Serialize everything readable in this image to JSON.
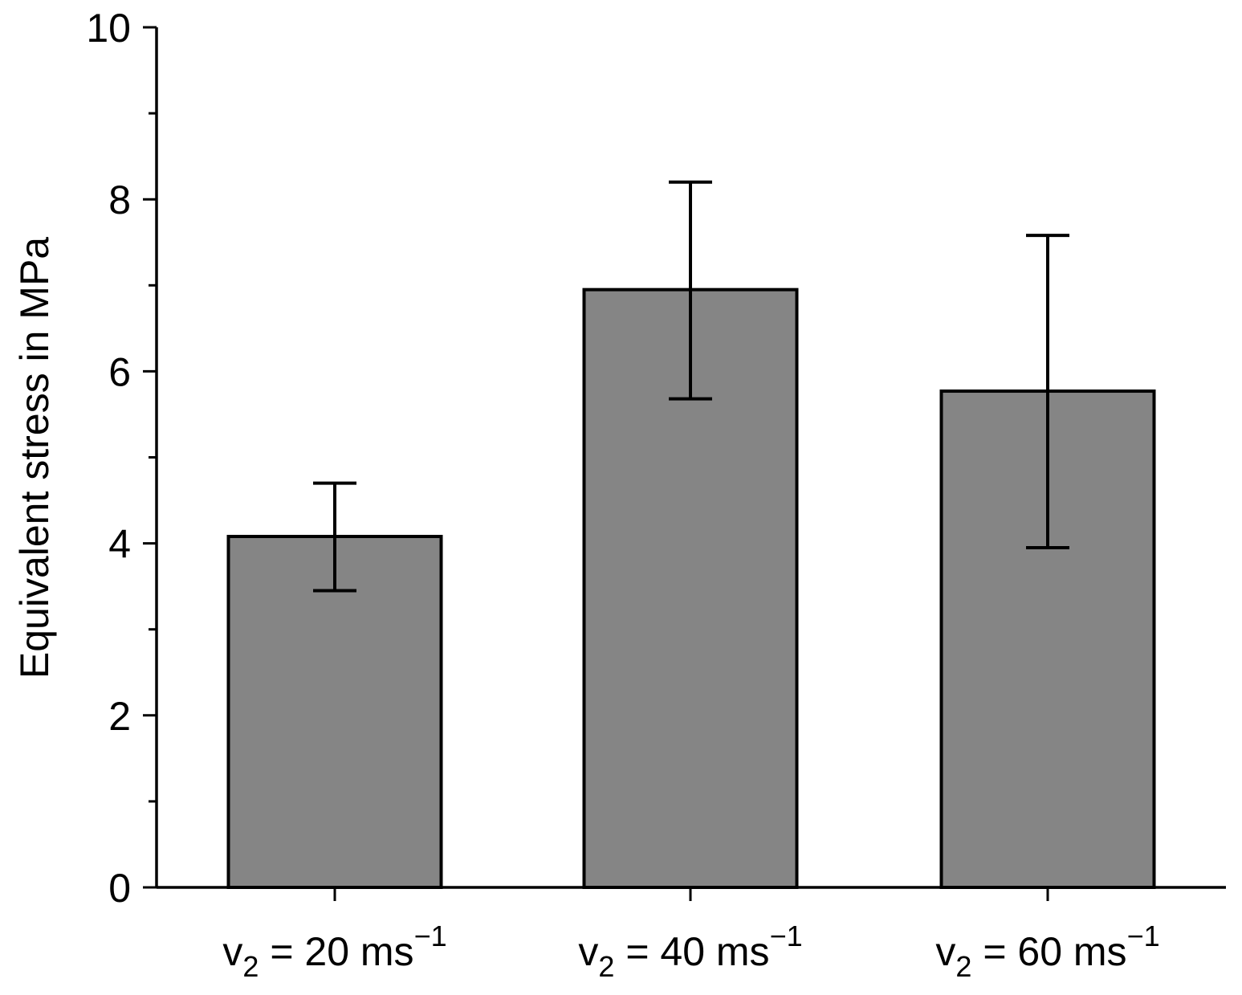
{
  "chart_data": {
    "type": "bar",
    "title": "",
    "xlabel": "",
    "ylabel": "Equivalent stress in MPa",
    "ylim": [
      0,
      10
    ],
    "y_major_ticks": [
      0,
      2,
      4,
      6,
      8,
      10
    ],
    "y_minor_ticks": [
      1,
      3,
      5,
      7,
      9
    ],
    "bar_color": "#858585",
    "categories": [
      {
        "base": "v",
        "sub": "2",
        "middle": " = 20 ms",
        "sup": "−1"
      },
      {
        "base": "v",
        "sub": "2",
        "middle": " = 40 ms",
        "sup": "−1"
      },
      {
        "base": "v",
        "sub": "2",
        "middle": " = 60 ms",
        "sup": "−1"
      }
    ],
    "values": [
      4.08,
      6.95,
      5.77
    ],
    "error_low": [
      3.45,
      5.68,
      3.95
    ],
    "error_high": [
      4.7,
      8.2,
      7.58
    ]
  }
}
